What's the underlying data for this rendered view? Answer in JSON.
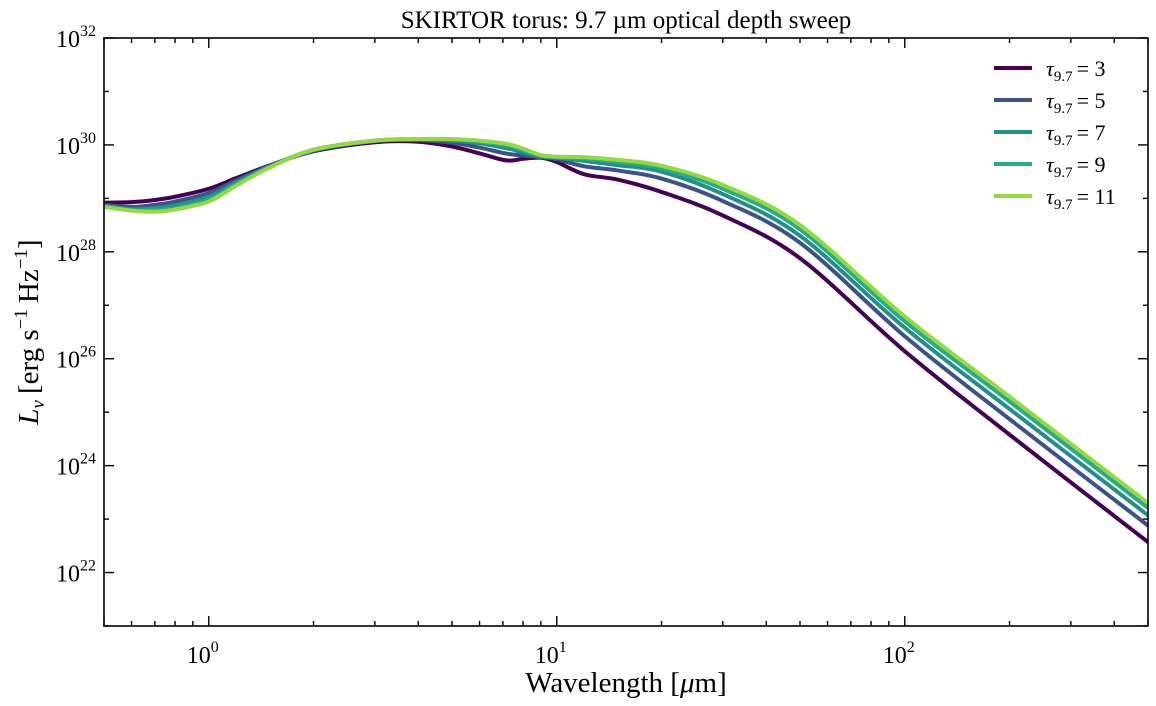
{
  "chart_data": {
    "type": "line",
    "title": "SKIRTOR torus: 9.7 µm optical depth sweep",
    "xlabel": {
      "text": "Wavelength [",
      "mu": "μ",
      "rest": "m]"
    },
    "ylabel": {
      "main": "L",
      "sub": "ν",
      "units": "[erg s",
      "sup1": "−1",
      "hz": "Hz",
      "sup2": "−1",
      "close": "]"
    },
    "xscale": "log",
    "yscale": "log",
    "xlim": [
      0.5,
      500
    ],
    "ylim": [
      1e+21,
      1e+32
    ],
    "x_ticks": [
      {
        "value": 1,
        "base": "10",
        "exp": "0"
      },
      {
        "value": 10,
        "base": "10",
        "exp": "1"
      },
      {
        "value": 100,
        "base": "10",
        "exp": "2"
      }
    ],
    "y_ticks": [
      {
        "value": 1e+22,
        "base": "10",
        "exp": "22"
      },
      {
        "value": 1e+24,
        "base": "10",
        "exp": "24"
      },
      {
        "value": 1e+26,
        "base": "10",
        "exp": "26"
      },
      {
        "value": 1e+28,
        "base": "10",
        "exp": "28"
      },
      {
        "value": 1e+30,
        "base": "10",
        "exp": "30"
      },
      {
        "value": 1e+32,
        "base": "10",
        "exp": "32"
      }
    ],
    "legend_position": "top-right",
    "grid": false,
    "x": [
      0.5,
      0.6,
      0.7,
      0.8,
      1.0,
      1.2,
      1.5,
      2.0,
      3.0,
      4.0,
      5.0,
      6.0,
      7.0,
      7.5,
      8.0,
      9.0,
      10,
      12,
      15,
      20,
      30,
      50,
      100,
      200,
      500
    ],
    "series": [
      {
        "tau_label": "τ",
        "tau_sub": "9.7",
        "eq": "= 3",
        "color": "#440154",
        "log10_y": [
          28.92,
          28.93,
          28.97,
          29.03,
          29.18,
          29.38,
          29.62,
          29.88,
          30.05,
          30.06,
          29.97,
          29.84,
          29.72,
          29.71,
          29.74,
          29.76,
          29.68,
          29.45,
          29.35,
          29.12,
          28.68,
          27.88,
          26.14,
          24.58,
          22.57
        ]
      },
      {
        "tau_label": "τ",
        "tau_sub": "9.7",
        "eq": "= 5",
        "color": "#3b528b",
        "log10_y": [
          28.88,
          28.84,
          28.88,
          28.94,
          29.1,
          29.34,
          29.61,
          29.89,
          30.07,
          30.09,
          30.04,
          29.95,
          29.85,
          29.82,
          29.8,
          29.77,
          29.73,
          29.6,
          29.52,
          29.37,
          28.95,
          28.17,
          26.42,
          24.87,
          22.88
        ]
      },
      {
        "tau_label": "τ",
        "tau_sub": "9.7",
        "eq": "= 7",
        "color": "#21908d",
        "log10_y": [
          28.86,
          28.8,
          28.82,
          28.87,
          29.03,
          29.3,
          29.6,
          29.9,
          30.08,
          30.1,
          30.08,
          30.03,
          29.95,
          29.91,
          29.86,
          29.78,
          29.76,
          29.7,
          29.62,
          29.5,
          29.08,
          28.3,
          26.58,
          25.06,
          23.07
        ]
      },
      {
        "tau_label": "τ",
        "tau_sub": "9.7",
        "eq": "= 9",
        "color": "#27ad81",
        "log10_y": [
          28.85,
          28.78,
          28.78,
          28.82,
          28.98,
          29.27,
          29.59,
          29.91,
          30.08,
          30.11,
          30.1,
          30.06,
          30.0,
          29.96,
          29.9,
          29.8,
          29.77,
          29.74,
          29.68,
          29.56,
          29.18,
          28.42,
          26.7,
          25.2,
          23.21
        ]
      },
      {
        "tau_label": "τ",
        "tau_sub": "9.7",
        "eq": "= 11",
        "color": "#95d840",
        "log10_y": [
          28.84,
          28.77,
          28.75,
          28.79,
          28.94,
          29.24,
          29.58,
          29.91,
          30.08,
          30.11,
          30.11,
          30.08,
          30.03,
          29.99,
          29.93,
          29.81,
          29.78,
          29.77,
          29.72,
          29.61,
          29.25,
          28.5,
          26.79,
          25.29,
          23.3
        ]
      }
    ]
  }
}
